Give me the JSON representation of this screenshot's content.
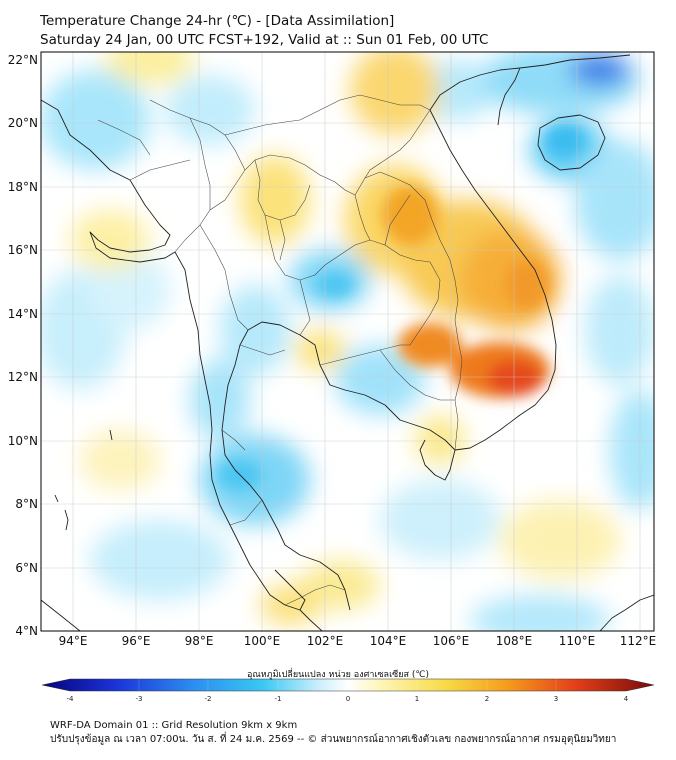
{
  "title": {
    "line1": "Temperature Change 24-hr (℃) - [Data Assimilation]",
    "line2": "Saturday 24 Jan, 00 UTC FCST+192, Valid at :: Sun 01 Feb, 00 UTC"
  },
  "map": {
    "lat_labels": [
      "22°N",
      "20°N",
      "18°N",
      "16°N",
      "14°N",
      "12°N",
      "10°N",
      "8°N",
      "6°N",
      "4°N"
    ],
    "lon_labels": [
      "94°E",
      "96°E",
      "98°E",
      "100°E",
      "102°E",
      "104°E",
      "106°E",
      "108°E",
      "110°E",
      "112°E"
    ],
    "colors": {
      "warm": "#f5a21e",
      "hot": "#e8431c",
      "cool": "#3cc4f0",
      "cold": "#1b4fe0",
      "neutral": "#ffffff"
    }
  },
  "colorbar": {
    "label": "อุณหภูมิเปลี่ยนแปลง หน่วย องศาเซลเซียส (℃)",
    "ticks": [
      "-4",
      "-3",
      "-2",
      "-1",
      "0",
      "1",
      "2",
      "3",
      "4"
    ]
  },
  "footer": {
    "line1": "WRF-DA Domain 01 :: Grid Resolution 9km x 9km",
    "line2": "ปรับปรุงข้อมูล ณ เวลา 07:00น. วัน ส. ที่ 24 ม.ค. 2569 -- © ส่วนพยากรณ์อากาศเชิงตัวเลข กองพยากรณ์อากาศ กรมอุตุนิยมวิทยา"
  }
}
